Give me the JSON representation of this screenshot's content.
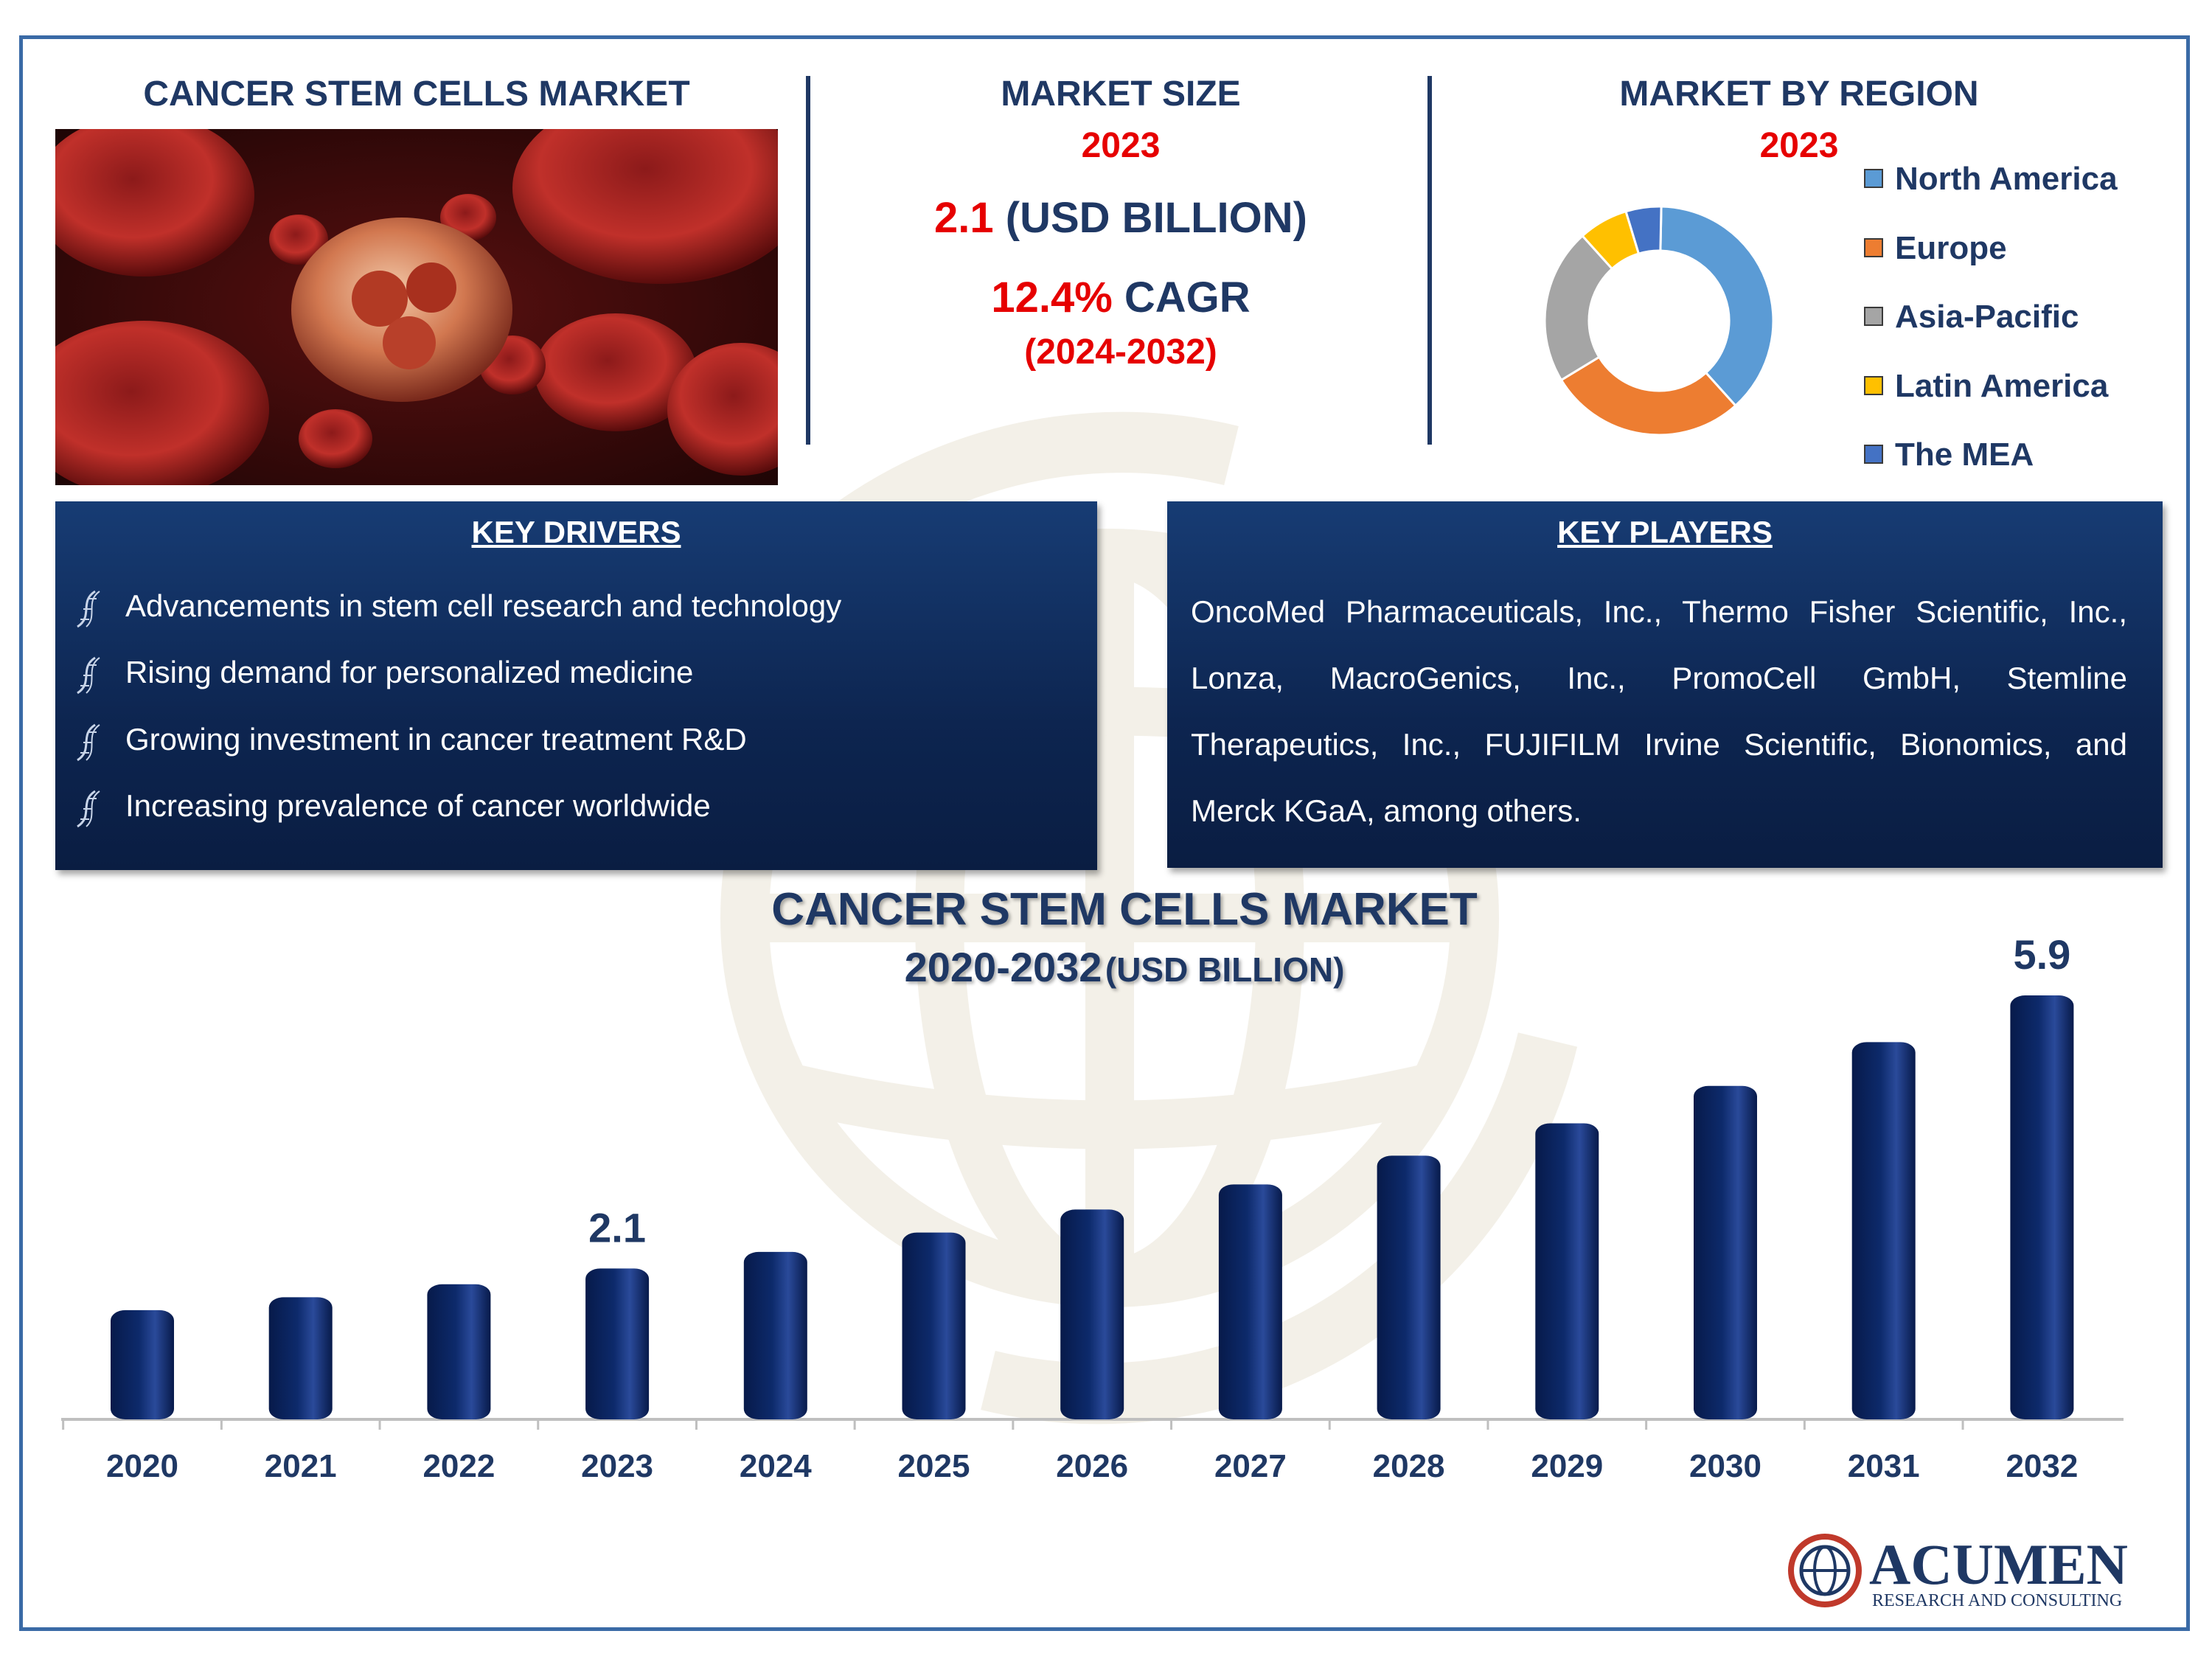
{
  "header": {
    "left_title": "CANCER STEM CELLS MARKET",
    "market_size_title": "MARKET SIZE",
    "market_size_year": "2023",
    "market_size_value": "2.1",
    "market_size_unit": "(USD BILLION)",
    "cagr_value": "12.4%",
    "cagr_label": "CAGR",
    "cagr_period": "(2024-2032)",
    "region_title": "MARKET BY REGION",
    "region_year": "2023"
  },
  "regions": [
    {
      "name": "North America",
      "color": "#5b9bd5",
      "share": 0.38
    },
    {
      "name": "Europe",
      "color": "#ed7d31",
      "share": 0.28
    },
    {
      "name": "Asia-Pacific",
      "color": "#a5a5a5",
      "share": 0.22
    },
    {
      "name": "Latin America",
      "color": "#ffc000",
      "share": 0.07
    },
    {
      "name": "The MEA",
      "color": "#4472c4",
      "share": 0.05
    }
  ],
  "key_drivers": {
    "title": "KEY DRIVERS",
    "items": [
      "Advancements in stem cell research and technology",
      "Rising demand for personalized medicine",
      "Growing investment in cancer treatment R&D",
      "Increasing prevalence of cancer worldwide"
    ]
  },
  "key_players": {
    "title": "KEY PLAYERS",
    "text": "OncoMed Pharmaceuticals, Inc., Thermo Fisher Scientific, Inc., Lonza, MacroGenics, Inc., PromoCell GmbH, Stemline Therapeutics, Inc., FUJIFILM Irvine Scientific, Bionomics, and Merck KGaA, among others."
  },
  "chart_data": {
    "type": "bar",
    "title": "CANCER STEM CELLS MARKET",
    "subtitle_years": "2020-2032",
    "subtitle_unit": "(USD BILLION)",
    "categories": [
      "2020",
      "2021",
      "2022",
      "2023",
      "2024",
      "2025",
      "2026",
      "2027",
      "2028",
      "2029",
      "2030",
      "2031",
      "2032"
    ],
    "values": [
      1.52,
      1.7,
      1.88,
      2.1,
      2.33,
      2.6,
      2.92,
      3.27,
      3.67,
      4.12,
      4.64,
      5.25,
      5.9
    ],
    "data_labels": {
      "2023": "2.1",
      "2032": "5.9"
    },
    "bar_color": "#0d2a6b",
    "ylim": [
      0,
      6.0
    ]
  },
  "logo": {
    "name": "ACUMEN",
    "tagline": "RESEARCH AND CONSULTING"
  }
}
